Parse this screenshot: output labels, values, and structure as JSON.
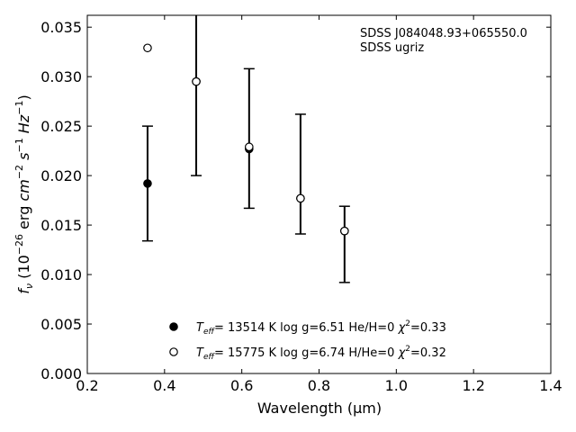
{
  "chart_data": {
    "type": "scatter",
    "xlabel": "Wavelength (μm)",
    "ylabel": "fν (10⁻²⁶ erg cm⁻² s⁻¹ Hz⁻¹)",
    "xlim": [
      0.2,
      1.4
    ],
    "ylim": [
      0.0,
      0.0362
    ],
    "xticks": [
      "0.2",
      "0.4",
      "0.6",
      "0.8",
      "1.0",
      "1.2",
      "1.4"
    ],
    "yticks": [
      "0.000",
      "0.005",
      "0.010",
      "0.015",
      "0.020",
      "0.025",
      "0.030",
      "0.035"
    ],
    "grid": false,
    "annotations": [
      "SDSS J084048.93+065550.0",
      "SDSS ugriz"
    ],
    "observed": {
      "x": [
        0.356,
        0.482,
        0.619,
        0.752,
        0.866
      ],
      "y": [
        0.0192,
        0.0295,
        0.0227,
        0.0177,
        0.0144
      ],
      "yerr_low": [
        0.0134,
        0.02,
        0.0167,
        0.0141,
        0.0092
      ],
      "yerr_high": [
        0.025,
        0.0362,
        0.0308,
        0.0262,
        0.0169
      ]
    },
    "series": [
      {
        "name": "Teff= 13514 K  log g=6.51  He/H=0  χ²=0.33",
        "marker": "filled",
        "x": [
          0.356,
          0.482,
          0.619,
          0.752,
          0.866
        ],
        "y": [
          0.0192,
          0.0295,
          0.0227,
          0.0177,
          0.0144
        ]
      },
      {
        "name": "Teff= 15775 K  log g=6.74  H/He=0  χ²=0.32",
        "marker": "open",
        "x": [
          0.356,
          0.482,
          0.619,
          0.752,
          0.866
        ],
        "y": [
          0.0329,
          0.0295,
          0.0229,
          0.0177,
          0.0144
        ]
      }
    ],
    "legend": [
      {
        "marker": "filled",
        "teff": "13514",
        "text": "= 13514 K  log g=6.51  He/H=0  ",
        "chi": "=0.33"
      },
      {
        "marker": "open",
        "teff": "15775",
        "text": "= 15775 K  log g=6.74  H/He=0  ",
        "chi": "=0.32"
      }
    ],
    "legend_placement": "lower-center",
    "colors": {
      "marker": "#000000",
      "axes": "#000000",
      "background": "#ffffff"
    }
  }
}
